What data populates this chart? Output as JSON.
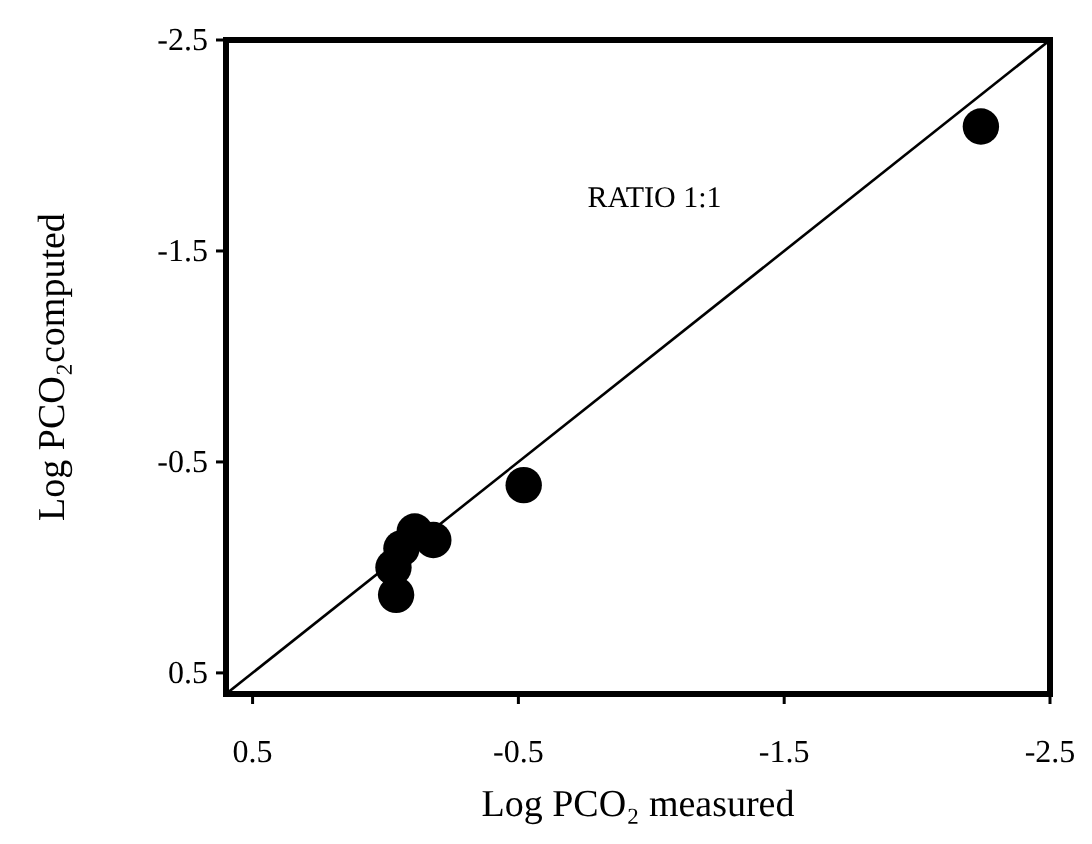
{
  "chart_data": {
    "type": "scatter",
    "xlabel": "Log PCO₂ measured",
    "ylabel": "Log PCO₂computed",
    "xlim": [
      0.6,
      -2.5
    ],
    "ylim": [
      0.6,
      -2.5
    ],
    "xticks": [
      0.5,
      -0.5,
      -1.5,
      -2.5
    ],
    "yticks": [
      0.5,
      -0.5,
      -1.5,
      -2.5
    ],
    "grid": false,
    "series": [
      {
        "marker": "circle",
        "color": "#000000",
        "x": [
          -2.24,
          -0.52,
          -0.04,
          -0.03,
          -0.06,
          -0.11,
          -0.18
        ],
        "values": [
          -2.09,
          -0.39,
          0.13,
          0.0,
          -0.09,
          -0.17,
          -0.13
        ]
      },
      {
        "type": "line",
        "color": "#000000",
        "x": [
          0.6,
          -2.5
        ],
        "values": [
          0.6,
          -2.5
        ]
      }
    ],
    "annotations": [
      "RATIO 1:1"
    ]
  }
}
